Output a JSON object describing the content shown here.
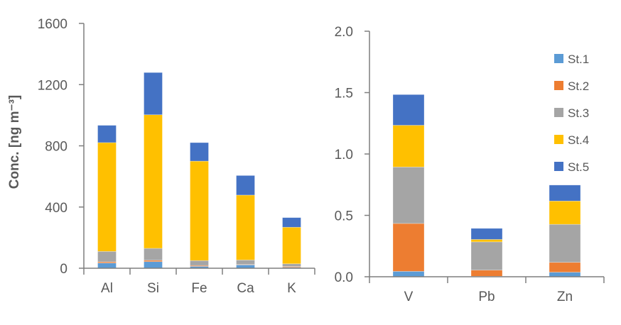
{
  "chart_data": [
    {
      "type": "bar",
      "stacked": true,
      "title": "",
      "xlabel": "",
      "ylabel": "Conc. [ng m⁻³]",
      "ylim": [
        0,
        1600
      ],
      "yticks": [
        "0",
        "400",
        "800",
        "1200",
        "1600"
      ],
      "yticks_values": [
        0,
        400,
        800,
        1200,
        1600
      ],
      "categories": [
        "Al",
        "Si",
        "Fe",
        "Ca",
        "K"
      ],
      "series": [
        {
          "name": "St.1",
          "color": "#5B9BD5",
          "values": [
            34,
            43,
            12,
            22,
            6
          ]
        },
        {
          "name": "St.2",
          "color": "#ED7D31",
          "values": [
            8,
            9,
            6,
            3,
            5
          ]
        },
        {
          "name": "St.3",
          "color": "#A5A5A5",
          "values": [
            68,
            78,
            32,
            29,
            18
          ]
        },
        {
          "name": "St.4",
          "color": "#FFC000",
          "values": [
            711,
            873,
            650,
            424,
            239
          ]
        },
        {
          "name": "St.5",
          "color": "#4472C4",
          "values": [
            113,
            276,
            121,
            128,
            63
          ]
        }
      ]
    },
    {
      "type": "bar",
      "stacked": true,
      "title": "",
      "xlabel": "",
      "ylabel": "",
      "ylim": [
        0,
        2.0
      ],
      "yticks": [
        "0.0",
        "0.5",
        "1.0",
        "1.5",
        "2.0"
      ],
      "yticks_values": [
        0,
        0.5,
        1.0,
        1.5,
        2.0
      ],
      "categories": [
        "V",
        "Pb",
        "Zn"
      ],
      "legend": "right",
      "series": [
        {
          "name": "St.1",
          "color": "#5B9BD5",
          "values": [
            0.044,
            0.004,
            0.037
          ]
        },
        {
          "name": "St.2",
          "color": "#ED7D31",
          "values": [
            0.39,
            0.05,
            0.08
          ]
        },
        {
          "name": "St.3",
          "color": "#A5A5A5",
          "values": [
            0.46,
            0.23,
            0.31
          ]
        },
        {
          "name": "St.4",
          "color": "#FFC000",
          "values": [
            0.34,
            0.02,
            0.19
          ]
        },
        {
          "name": "St.5",
          "color": "#4472C4",
          "values": [
            0.25,
            0.09,
            0.13
          ]
        }
      ]
    }
  ]
}
